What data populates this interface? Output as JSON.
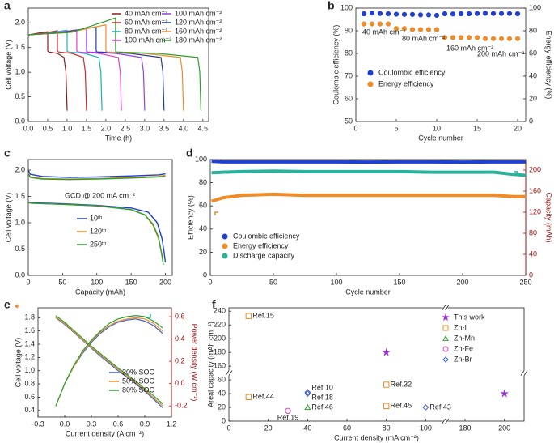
{
  "chart_data": [
    {
      "type": "line",
      "panel": "a",
      "xlabel": "Time (h)",
      "ylabel": "Cell voltage (V)",
      "xlim": [
        0,
        4.65
      ],
      "ylim": [
        0,
        2.3
      ],
      "xticks": [
        {
          "value": 0,
          "label": "0.0"
        },
        0.5,
        {
          "value": 1,
          "label": "1.0"
        },
        1.5,
        {
          "value": 2,
          "label": "2.0"
        },
        2.5,
        {
          "value": 3,
          "label": "3.0"
        },
        3.5,
        {
          "value": 4,
          "label": "4.0"
        },
        4.5
      ],
      "yticks": [
        {
          "value": 0,
          "label": "0.0"
        },
        0.5,
        {
          "value": 1,
          "label": "1.0"
        },
        1.5,
        {
          "value": 2,
          "label": "2.0"
        }
      ],
      "series": [
        {
          "name": "40 mAh cm⁻²",
          "color": "#8b1a1a",
          "x": [
            0,
            0.03,
            0.25,
            0.5,
            0.5,
            0.53,
            0.75,
            0.92,
            0.97,
            1.0
          ],
          "values": [
            1.72,
            1.76,
            1.79,
            1.82,
            1.43,
            1.41,
            1.38,
            1.3,
            1.0,
            0.22
          ]
        },
        {
          "name": "60 mAh cm⁻²",
          "color": "#d62728",
          "x": [
            0,
            0.03,
            0.38,
            0.75,
            0.75,
            0.78,
            1.13,
            1.42,
            1.47,
            1.5
          ],
          "values": [
            1.72,
            1.76,
            1.79,
            1.84,
            1.43,
            1.41,
            1.38,
            1.3,
            1.0,
            0.22
          ]
        },
        {
          "name": "80 mAh cm⁻²",
          "color": "#17b3b3",
          "x": [
            0,
            0.03,
            0.5,
            1.0,
            1.0,
            1.03,
            1.45,
            1.82,
            1.87,
            1.9
          ],
          "values": [
            1.72,
            1.76,
            1.79,
            1.85,
            1.43,
            1.41,
            1.38,
            1.3,
            1.0,
            0.22
          ]
        },
        {
          "name": "100 mAh cm⁻²",
          "color": "#e040d0",
          "x": [
            0,
            0.03,
            0.63,
            1.25,
            1.25,
            1.28,
            1.83,
            2.32,
            2.37,
            2.4
          ],
          "values": [
            1.72,
            1.76,
            1.79,
            1.86,
            1.43,
            1.41,
            1.38,
            1.3,
            1.0,
            0.22
          ]
        },
        {
          "name": "100 mAh cm⁻²",
          "color": "#9440e8",
          "x": [
            0,
            0.03,
            0.75,
            1.5,
            1.5,
            1.53,
            2.25,
            2.92,
            2.97,
            3.0
          ],
          "values": [
            1.72,
            1.76,
            1.8,
            1.88,
            1.43,
            1.41,
            1.38,
            1.3,
            1.0,
            0.22
          ]
        },
        {
          "name": "120 mAh cm⁻²",
          "color": "#1f3fa0",
          "x": [
            0,
            0.03,
            0.88,
            1.75,
            1.75,
            1.78,
            2.63,
            3.42,
            3.47,
            3.5
          ],
          "values": [
            1.72,
            1.76,
            1.8,
            1.92,
            1.43,
            1.41,
            1.38,
            1.3,
            1.0,
            0.22
          ]
        },
        {
          "name": "160 mAh cm⁻²",
          "color": "#f08c28",
          "x": [
            0,
            0.03,
            1.0,
            2.0,
            2.0,
            2.03,
            3.0,
            3.92,
            3.97,
            4.0
          ],
          "values": [
            1.72,
            1.76,
            1.8,
            1.96,
            1.43,
            1.41,
            1.38,
            1.3,
            1.0,
            0.22
          ]
        },
        {
          "name": "180 mAh cm⁻²",
          "color": "#2ca02c",
          "x": [
            0,
            0.03,
            1.13,
            2.25,
            2.25,
            2.28,
            3.35,
            4.37,
            4.42,
            4.45
          ],
          "values": [
            1.72,
            1.76,
            1.81,
            2.1,
            1.43,
            1.41,
            1.38,
            1.3,
            1.0,
            0.22
          ]
        }
      ]
    },
    {
      "type": "scatter",
      "panel": "b",
      "xlabel": "Cycle number",
      "ylabel": "Coulombic efficiency (%)",
      "y2label": "Energy efficiency (%)",
      "xlim": [
        0,
        21
      ],
      "ylim": [
        50,
        100
      ],
      "y2lim": [
        0,
        100
      ],
      "xticks": [
        0,
        5,
        10,
        15,
        20
      ],
      "yticks": [
        50,
        60,
        70,
        80,
        90,
        100
      ],
      "y2ticks": [
        0,
        20,
        40,
        60,
        80,
        100
      ],
      "x": [
        1,
        2,
        3,
        4,
        5,
        6,
        7,
        8,
        9,
        10,
        11,
        12,
        13,
        14,
        15,
        16,
        17,
        18,
        19,
        20
      ],
      "series": [
        {
          "name": "Coulombic efficiency",
          "color": "#2040d0",
          "marker": "circle",
          "values": [
            97.5,
            97.8,
            97.6,
            97.5,
            97.3,
            97.2,
            97.2,
            97.0,
            97.0,
            96.8,
            97.5,
            97.4,
            97.5,
            97.5,
            97.6,
            97.7,
            97.6,
            97.6,
            97.6,
            97.5
          ]
        },
        {
          "name": "Energy efficiency",
          "color": "#f08c28",
          "marker": "circle",
          "axis": "y2",
          "values": [
            86,
            86,
            86,
            86,
            82,
            82,
            81,
            81,
            81,
            81,
            74,
            74,
            74,
            74,
            74,
            73,
            73,
            73,
            73,
            73
          ]
        }
      ],
      "annotations": [
        "40 mAh cm⁻²",
        "80 mAh cm⁻²",
        "160 mAh cm⁻²",
        "200 mAh cm⁻²"
      ]
    },
    {
      "type": "line",
      "panel": "c",
      "xlabel": "Capacity (mAh)",
      "ylabel": "Cell voltage (V)",
      "xlim": [
        0,
        210
      ],
      "ylim": [
        0,
        2.2
      ],
      "xticks": [
        0,
        50,
        100,
        150,
        200
      ],
      "yticks": [
        {
          "value": 0,
          "label": "0.0"
        },
        0.5,
        {
          "value": 1,
          "label": "1.0"
        },
        1.5,
        {
          "value": 2,
          "label": "2.0"
        }
      ],
      "series": [
        {
          "name": "10ᵗʰ",
          "color": "#1f3fd0",
          "x": [
            0,
            3,
            20,
            60,
            100,
            150,
            190,
            200,
            null,
            0,
            5,
            50,
            100,
            150,
            175,
            188,
            195,
            198,
            200
          ],
          "values": [
            2.0,
            1.92,
            1.88,
            1.86,
            1.87,
            1.89,
            1.91,
            1.93,
            null,
            1.39,
            1.38,
            1.36,
            1.33,
            1.28,
            1.2,
            1.0,
            0.7,
            0.45,
            0.25
          ]
        },
        {
          "name": "120ᵗʰ",
          "color": "#f08c28",
          "x": [
            0,
            3,
            20,
            60,
            100,
            150,
            190,
            200,
            null,
            0,
            5,
            50,
            100,
            150,
            170,
            182,
            190,
            194,
            196
          ],
          "values": [
            1.95,
            1.87,
            1.84,
            1.83,
            1.84,
            1.86,
            1.88,
            1.9,
            null,
            1.38,
            1.37,
            1.35,
            1.32,
            1.25,
            1.15,
            0.95,
            0.7,
            0.45,
            0.35
          ]
        },
        {
          "name": "250ᵗʰ",
          "color": "#2ca02c",
          "x": [
            0,
            3,
            20,
            60,
            100,
            150,
            190,
            200,
            null,
            0,
            5,
            50,
            100,
            150,
            170,
            182,
            190,
            194,
            197
          ],
          "values": [
            1.93,
            1.86,
            1.83,
            1.82,
            1.83,
            1.85,
            1.87,
            1.88,
            null,
            1.38,
            1.37,
            1.35,
            1.32,
            1.25,
            1.15,
            0.97,
            0.72,
            0.45,
            0.2
          ]
        }
      ],
      "annotations": [
        "GCD @ 200 mA cm⁻²"
      ]
    },
    {
      "type": "line",
      "panel": "d",
      "xlabel": "Cycle number",
      "ylabel": "Efficiency (%)",
      "y2label": "Capacity (mAh)",
      "y2color": "#a01010",
      "xlim": [
        0,
        250
      ],
      "ylim": [
        0,
        100
      ],
      "y2lim": [
        0,
        220
      ],
      "xticks": [
        0,
        50,
        100,
        150,
        200,
        250
      ],
      "yticks": [
        0,
        20,
        40,
        60,
        80,
        100
      ],
      "y2ticks": [
        0,
        40,
        80,
        120,
        160,
        200
      ],
      "x": [
        1,
        10,
        25,
        50,
        75,
        100,
        125,
        150,
        175,
        200,
        225,
        240,
        250
      ],
      "series": [
        {
          "name": "Coulombic efficiency",
          "color": "#2040d0",
          "values": [
            98.5,
            98,
            98,
            98,
            98,
            98,
            97.8,
            98,
            98,
            97.8,
            98,
            98,
            98
          ]
        },
        {
          "name": "Energy efficiency",
          "color": "#f08c28",
          "values": [
            64,
            67,
            69,
            70,
            69,
            69,
            69,
            69,
            69,
            69,
            69,
            68,
            68
          ]
        },
        {
          "name": "Discharge capacity",
          "color": "#2ab39a",
          "axis": "y2",
          "values": [
            195,
            196,
            197,
            198,
            197,
            197,
            197,
            197,
            196,
            196,
            196,
            192,
            190
          ]
        }
      ]
    },
    {
      "type": "line",
      "panel": "e",
      "xlabel": "Current density (A cm⁻²)",
      "ylabel": "Cell voltage (V)",
      "y2label": "Power density (W cm⁻²)",
      "y2color": "#a01010",
      "xlim": [
        -0.3,
        1.2
      ],
      "ylim": [
        0.3,
        1.95
      ],
      "y2lim": [
        -0.3,
        0.68
      ],
      "xticks": [
        -0.3,
        {
          "value": 0,
          "label": "0.0"
        },
        0.3,
        0.6,
        0.9,
        1.2
      ],
      "yticks": [
        0.4,
        0.6,
        0.8,
        {
          "value": 1,
          "label": "1.0"
        },
        1.2,
        1.4,
        1.6,
        1.8
      ],
      "y2ticks": [
        -0.2,
        {
          "value": 0,
          "label": "0.0"
        },
        0.2,
        0.4,
        0.6
      ],
      "x": [
        -0.1,
        0,
        0.1,
        0.2,
        0.3,
        0.4,
        0.5,
        0.6,
        0.7,
        0.8,
        0.9,
        1.0,
        1.1
      ],
      "series": [
        {
          "name": "30% SOC",
          "color": "#4060d0",
          "values": [
            1.8,
            1.7,
            1.58,
            1.46,
            1.34,
            1.22,
            1.11,
            1.0,
            0.9,
            0.8,
            0.69,
            0.57,
            0.44
          ],
          "y2_values": [
            -0.2,
            0,
            0.15,
            0.27,
            0.37,
            0.45,
            0.51,
            0.55,
            0.57,
            0.58,
            0.56,
            0.52,
            0.45
          ]
        },
        {
          "name": "50% SOC",
          "color": "#f08c28",
          "values": [
            1.81,
            1.71,
            1.59,
            1.47,
            1.35,
            1.24,
            1.13,
            1.02,
            0.92,
            0.82,
            0.71,
            0.59,
            0.47
          ],
          "y2_values": [
            -0.2,
            0,
            0.15,
            0.28,
            0.38,
            0.46,
            0.52,
            0.56,
            0.58,
            0.59,
            0.58,
            0.54,
            0.47
          ]
        },
        {
          "name": "80% SOC",
          "color": "#2ca02c",
          "values": [
            1.83,
            1.73,
            1.61,
            1.49,
            1.37,
            1.26,
            1.15,
            1.04,
            0.94,
            0.84,
            0.73,
            0.62,
            0.5
          ],
          "y2_values": [
            -0.2,
            0,
            0.16,
            0.29,
            0.39,
            0.47,
            0.54,
            0.58,
            0.6,
            0.61,
            0.6,
            0.56,
            0.5
          ]
        }
      ]
    },
    {
      "type": "scatter",
      "panel": "f",
      "xlabel": "Current density (mA cm⁻²)",
      "ylabel": "Areal capacity (mAh cm⁻²)",
      "xlim": [
        0,
        210
      ],
      "ylim": [
        0,
        245
      ],
      "xbreak": [
        110,
        170
      ],
      "ybreak": [
        70,
        150
      ],
      "xticks": [
        0,
        20,
        40,
        60,
        80,
        100,
        180,
        200
      ],
      "yticks": [
        0,
        20,
        40,
        60,
        160,
        180,
        200,
        220,
        240
      ],
      "series": [
        {
          "name": "This work",
          "color": "#9b30d9",
          "marker": "star",
          "x": [
            80,
            200
          ],
          "values": [
            180,
            40
          ]
        },
        {
          "name": "Zn-I",
          "color": "#f08c28",
          "marker": "square",
          "hollow": true,
          "x": [
            10,
            10,
            80,
            80
          ],
          "values": [
            233,
            35,
            53,
            22
          ],
          "labels": [
            "Ref.15",
            "Ref.44",
            "Ref.32",
            "Ref.45"
          ]
        },
        {
          "name": "Zn-Mn",
          "color": "#2ca02c",
          "marker": "triangle",
          "hollow": true,
          "x": [
            40
          ],
          "values": [
            20
          ],
          "labels": [
            "Ref.46"
          ]
        },
        {
          "name": "Zn-Fe",
          "color": "#e040d0",
          "marker": "circle",
          "hollow": true,
          "x": [
            30
          ],
          "values": [
            15
          ],
          "labels": [
            "Ref.19"
          ]
        },
        {
          "name": "Zn-Br",
          "color": "#4060d0",
          "marker": "diamond",
          "hollow": true,
          "x": [
            40,
            40,
            100
          ],
          "values": [
            42,
            40,
            20
          ],
          "labels": [
            "Ref.10",
            "Ref.18",
            "Ref.43"
          ]
        }
      ]
    }
  ]
}
